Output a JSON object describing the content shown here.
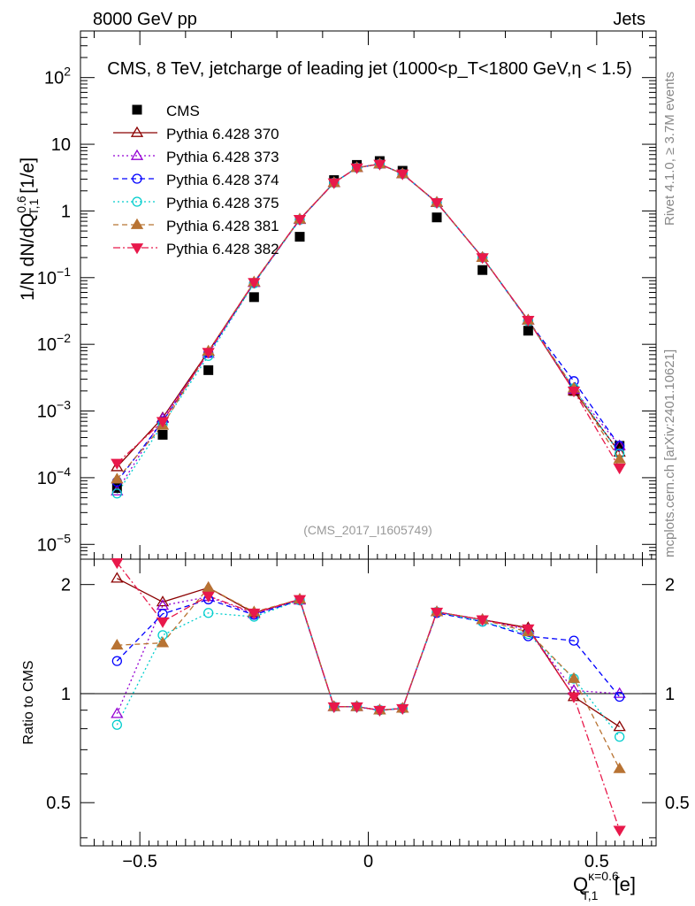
{
  "header": {
    "left": "8000 GeV pp",
    "right": "Jets",
    "title": "CMS, 8 TeV, jetcharge of leading jet (1000<p_T<1800 GeV,η < 1.5)"
  },
  "side_labels": {
    "rivet": "Rivet 4.1.0, ≥ 3.7M events",
    "mcplots": "mcplots.cern.ch [arXiv:2401.10621]"
  },
  "watermark": "(CMS_2017_I1605749)",
  "chart_data": [
    {
      "id": "main",
      "type": "scatter",
      "yscale": "log",
      "ylim": [
        6e-06,
        500
      ],
      "xlim": [
        -0.63,
        0.63
      ],
      "ylabel": "1/N dN/dQ_T,1^0.6 [1/e]",
      "yticks": [
        {
          "v": 1e-05,
          "base": "10",
          "exp": "−5"
        },
        {
          "v": 0.0001,
          "base": "10",
          "exp": "−4"
        },
        {
          "v": 0.001,
          "base": "10",
          "exp": "−3"
        },
        {
          "v": 0.01,
          "base": "10",
          "exp": "−2"
        },
        {
          "v": 0.1,
          "base": "10",
          "exp": "−1"
        },
        {
          "v": 1,
          "base": "1",
          "exp": ""
        },
        {
          "v": 10,
          "base": "10",
          "exp": ""
        },
        {
          "v": 100,
          "base": "10",
          "exp": "2"
        }
      ],
      "x": [
        -0.55,
        -0.45,
        -0.35,
        -0.25,
        -0.15,
        -0.075,
        -0.025,
        0.025,
        0.075,
        0.15,
        0.25,
        0.35,
        0.45,
        0.55
      ],
      "data_series": {
        "name": "CMS",
        "values": [
          7e-05,
          0.00044,
          0.0041,
          0.051,
          0.41,
          2.9,
          4.9,
          5.6,
          4.0,
          0.8,
          0.13,
          0.016,
          0.002,
          0.0003
        ]
      },
      "series": [
        {
          "name": "Pythia 6.428 370",
          "color": "#8b0000",
          "marker": "triangle-open",
          "dash": "",
          "values": [
            0.000145,
            0.00079,
            0.0078,
            0.085,
            0.75,
            2.65,
            4.45,
            5.05,
            3.6,
            1.34,
            0.2,
            0.023,
            0.002,
            0.00024
          ]
        },
        {
          "name": "Pythia 6.428 373",
          "color": "#9400d3",
          "marker": "triangle-open",
          "dash": "2,3",
          "values": [
            6.3e-05,
            0.00077,
            0.0073,
            0.084,
            0.74,
            2.65,
            4.45,
            5.05,
            3.6,
            1.33,
            0.2,
            0.023,
            0.0021,
            0.0003
          ]
        },
        {
          "name": "Pythia 6.428 374",
          "color": "#0000ff",
          "marker": "circle-open",
          "dash": "6,4",
          "values": [
            8.7e-05,
            0.0007,
            0.0074,
            0.083,
            0.74,
            2.65,
            4.45,
            5.05,
            3.6,
            1.33,
            0.2,
            0.0225,
            0.0028,
            0.0003
          ]
        },
        {
          "name": "Pythia 6.428 375",
          "color": "#00cdcd",
          "marker": "circle-open",
          "dash": "2,3",
          "values": [
            5.8e-05,
            0.00063,
            0.0067,
            0.082,
            0.74,
            2.65,
            4.45,
            5.05,
            3.6,
            1.33,
            0.2,
            0.0225,
            0.0022,
            0.00023
          ]
        },
        {
          "name": "Pythia 6.428 381",
          "color": "#b87333",
          "marker": "triangle-filled",
          "dash": "6,4",
          "values": [
            9.5e-05,
            0.00061,
            0.0079,
            0.086,
            0.75,
            2.65,
            4.45,
            5.05,
            3.6,
            1.34,
            0.2,
            0.023,
            0.0022,
            0.00019
          ]
        },
        {
          "name": "Pythia 6.428 382",
          "color": "#e8194b",
          "marker": "triangle-down-filled",
          "dash": "8,3,2,3",
          "values": [
            0.000165,
            0.0007,
            0.0076,
            0.085,
            0.75,
            2.65,
            4.45,
            5.05,
            3.6,
            1.34,
            0.2,
            0.023,
            0.002,
            0.00014
          ]
        }
      ]
    },
    {
      "id": "ratio",
      "type": "line",
      "yscale": "log",
      "ylim": [
        0.38,
        2.35
      ],
      "ylabel": "Ratio to CMS",
      "xlabel": "Q_T,1^κ=0.6 [e]",
      "yticks": [
        {
          "v": 0.5,
          "label": "0.5"
        },
        {
          "v": 1,
          "label": "1"
        },
        {
          "v": 2,
          "label": "2"
        }
      ],
      "xticks": [
        {
          "v": -0.5,
          "label": "−0.5"
        },
        {
          "v": 0,
          "label": "0"
        },
        {
          "v": 0.5,
          "label": "0.5"
        }
      ],
      "x": [
        -0.55,
        -0.45,
        -0.35,
        -0.25,
        -0.15,
        -0.075,
        -0.025,
        0.025,
        0.075,
        0.15,
        0.25,
        0.35,
        0.45,
        0.55
      ],
      "series": [
        {
          "name": "Pythia 6.428 370",
          "values": [
            2.08,
            1.79,
            1.96,
            1.67,
            1.82,
            0.92,
            0.92,
            0.9,
            0.91,
            1.68,
            1.6,
            1.52,
            0.98,
            0.81
          ]
        },
        {
          "name": "Pythia 6.428 373",
          "values": [
            0.88,
            1.75,
            1.85,
            1.66,
            1.81,
            0.92,
            0.92,
            0.9,
            0.91,
            1.68,
            1.6,
            1.5,
            1.02,
            1.0
          ]
        },
        {
          "name": "Pythia 6.428 374",
          "values": [
            1.23,
            1.66,
            1.82,
            1.65,
            1.81,
            0.92,
            0.92,
            0.9,
            0.91,
            1.67,
            1.58,
            1.44,
            1.4,
            0.98
          ]
        },
        {
          "name": "Pythia 6.428 375",
          "values": [
            0.82,
            1.45,
            1.67,
            1.63,
            1.81,
            0.92,
            0.92,
            0.9,
            0.91,
            1.68,
            1.58,
            1.46,
            1.1,
            0.76
          ]
        },
        {
          "name": "Pythia 6.428 381",
          "values": [
            1.36,
            1.38,
            1.96,
            1.68,
            1.82,
            0.92,
            0.92,
            0.9,
            0.91,
            1.68,
            1.6,
            1.48,
            1.1,
            0.62
          ]
        },
        {
          "name": "Pythia 6.428 382",
          "values": [
            2.3,
            1.58,
            1.86,
            1.67,
            1.82,
            0.92,
            0.92,
            0.9,
            0.91,
            1.68,
            1.6,
            1.51,
            0.98,
            0.42
          ]
        }
      ]
    }
  ]
}
